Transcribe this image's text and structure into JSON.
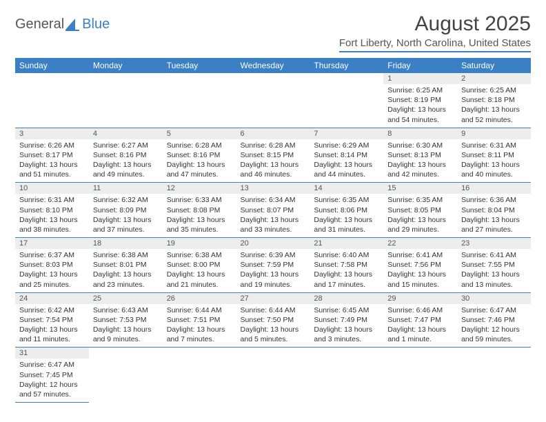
{
  "logo": {
    "text1": "General",
    "text2": "Blue",
    "sail_color": "#3b7fc4",
    "text1_color": "#555555"
  },
  "title": "August 2025",
  "location": "Fort Liberty, North Carolina, United States",
  "colors": {
    "header_bg": "#3b7fc4",
    "daynum_bg": "#eceded",
    "border": "#3b7fc4",
    "text": "#333333",
    "page_bg": "#ffffff"
  },
  "weekdays": [
    "Sunday",
    "Monday",
    "Tuesday",
    "Wednesday",
    "Thursday",
    "Friday",
    "Saturday"
  ],
  "weeks": [
    [
      {
        "blank": true
      },
      {
        "blank": true
      },
      {
        "blank": true
      },
      {
        "blank": true
      },
      {
        "blank": true
      },
      {
        "day": "1",
        "sunrise": "Sunrise: 6:25 AM",
        "sunset": "Sunset: 8:19 PM",
        "daylight": "Daylight: 13 hours and 54 minutes."
      },
      {
        "day": "2",
        "sunrise": "Sunrise: 6:25 AM",
        "sunset": "Sunset: 8:18 PM",
        "daylight": "Daylight: 13 hours and 52 minutes."
      }
    ],
    [
      {
        "day": "3",
        "sunrise": "Sunrise: 6:26 AM",
        "sunset": "Sunset: 8:17 PM",
        "daylight": "Daylight: 13 hours and 51 minutes."
      },
      {
        "day": "4",
        "sunrise": "Sunrise: 6:27 AM",
        "sunset": "Sunset: 8:16 PM",
        "daylight": "Daylight: 13 hours and 49 minutes."
      },
      {
        "day": "5",
        "sunrise": "Sunrise: 6:28 AM",
        "sunset": "Sunset: 8:16 PM",
        "daylight": "Daylight: 13 hours and 47 minutes."
      },
      {
        "day": "6",
        "sunrise": "Sunrise: 6:28 AM",
        "sunset": "Sunset: 8:15 PM",
        "daylight": "Daylight: 13 hours and 46 minutes."
      },
      {
        "day": "7",
        "sunrise": "Sunrise: 6:29 AM",
        "sunset": "Sunset: 8:14 PM",
        "daylight": "Daylight: 13 hours and 44 minutes."
      },
      {
        "day": "8",
        "sunrise": "Sunrise: 6:30 AM",
        "sunset": "Sunset: 8:13 PM",
        "daylight": "Daylight: 13 hours and 42 minutes."
      },
      {
        "day": "9",
        "sunrise": "Sunrise: 6:31 AM",
        "sunset": "Sunset: 8:11 PM",
        "daylight": "Daylight: 13 hours and 40 minutes."
      }
    ],
    [
      {
        "day": "10",
        "sunrise": "Sunrise: 6:31 AM",
        "sunset": "Sunset: 8:10 PM",
        "daylight": "Daylight: 13 hours and 38 minutes."
      },
      {
        "day": "11",
        "sunrise": "Sunrise: 6:32 AM",
        "sunset": "Sunset: 8:09 PM",
        "daylight": "Daylight: 13 hours and 37 minutes."
      },
      {
        "day": "12",
        "sunrise": "Sunrise: 6:33 AM",
        "sunset": "Sunset: 8:08 PM",
        "daylight": "Daylight: 13 hours and 35 minutes."
      },
      {
        "day": "13",
        "sunrise": "Sunrise: 6:34 AM",
        "sunset": "Sunset: 8:07 PM",
        "daylight": "Daylight: 13 hours and 33 minutes."
      },
      {
        "day": "14",
        "sunrise": "Sunrise: 6:35 AM",
        "sunset": "Sunset: 8:06 PM",
        "daylight": "Daylight: 13 hours and 31 minutes."
      },
      {
        "day": "15",
        "sunrise": "Sunrise: 6:35 AM",
        "sunset": "Sunset: 8:05 PM",
        "daylight": "Daylight: 13 hours and 29 minutes."
      },
      {
        "day": "16",
        "sunrise": "Sunrise: 6:36 AM",
        "sunset": "Sunset: 8:04 PM",
        "daylight": "Daylight: 13 hours and 27 minutes."
      }
    ],
    [
      {
        "day": "17",
        "sunrise": "Sunrise: 6:37 AM",
        "sunset": "Sunset: 8:03 PM",
        "daylight": "Daylight: 13 hours and 25 minutes."
      },
      {
        "day": "18",
        "sunrise": "Sunrise: 6:38 AM",
        "sunset": "Sunset: 8:01 PM",
        "daylight": "Daylight: 13 hours and 23 minutes."
      },
      {
        "day": "19",
        "sunrise": "Sunrise: 6:38 AM",
        "sunset": "Sunset: 8:00 PM",
        "daylight": "Daylight: 13 hours and 21 minutes."
      },
      {
        "day": "20",
        "sunrise": "Sunrise: 6:39 AM",
        "sunset": "Sunset: 7:59 PM",
        "daylight": "Daylight: 13 hours and 19 minutes."
      },
      {
        "day": "21",
        "sunrise": "Sunrise: 6:40 AM",
        "sunset": "Sunset: 7:58 PM",
        "daylight": "Daylight: 13 hours and 17 minutes."
      },
      {
        "day": "22",
        "sunrise": "Sunrise: 6:41 AM",
        "sunset": "Sunset: 7:56 PM",
        "daylight": "Daylight: 13 hours and 15 minutes."
      },
      {
        "day": "23",
        "sunrise": "Sunrise: 6:41 AM",
        "sunset": "Sunset: 7:55 PM",
        "daylight": "Daylight: 13 hours and 13 minutes."
      }
    ],
    [
      {
        "day": "24",
        "sunrise": "Sunrise: 6:42 AM",
        "sunset": "Sunset: 7:54 PM",
        "daylight": "Daylight: 13 hours and 11 minutes."
      },
      {
        "day": "25",
        "sunrise": "Sunrise: 6:43 AM",
        "sunset": "Sunset: 7:53 PM",
        "daylight": "Daylight: 13 hours and 9 minutes."
      },
      {
        "day": "26",
        "sunrise": "Sunrise: 6:44 AM",
        "sunset": "Sunset: 7:51 PM",
        "daylight": "Daylight: 13 hours and 7 minutes."
      },
      {
        "day": "27",
        "sunrise": "Sunrise: 6:44 AM",
        "sunset": "Sunset: 7:50 PM",
        "daylight": "Daylight: 13 hours and 5 minutes."
      },
      {
        "day": "28",
        "sunrise": "Sunrise: 6:45 AM",
        "sunset": "Sunset: 7:49 PM",
        "daylight": "Daylight: 13 hours and 3 minutes."
      },
      {
        "day": "29",
        "sunrise": "Sunrise: 6:46 AM",
        "sunset": "Sunset: 7:47 PM",
        "daylight": "Daylight: 13 hours and 1 minute."
      },
      {
        "day": "30",
        "sunrise": "Sunrise: 6:47 AM",
        "sunset": "Sunset: 7:46 PM",
        "daylight": "Daylight: 12 hours and 59 minutes."
      }
    ],
    [
      {
        "day": "31",
        "sunrise": "Sunrise: 6:47 AM",
        "sunset": "Sunset: 7:45 PM",
        "daylight": "Daylight: 12 hours and 57 minutes."
      },
      {
        "blank": true
      },
      {
        "blank": true
      },
      {
        "blank": true
      },
      {
        "blank": true
      },
      {
        "blank": true
      },
      {
        "blank": true
      }
    ]
  ]
}
